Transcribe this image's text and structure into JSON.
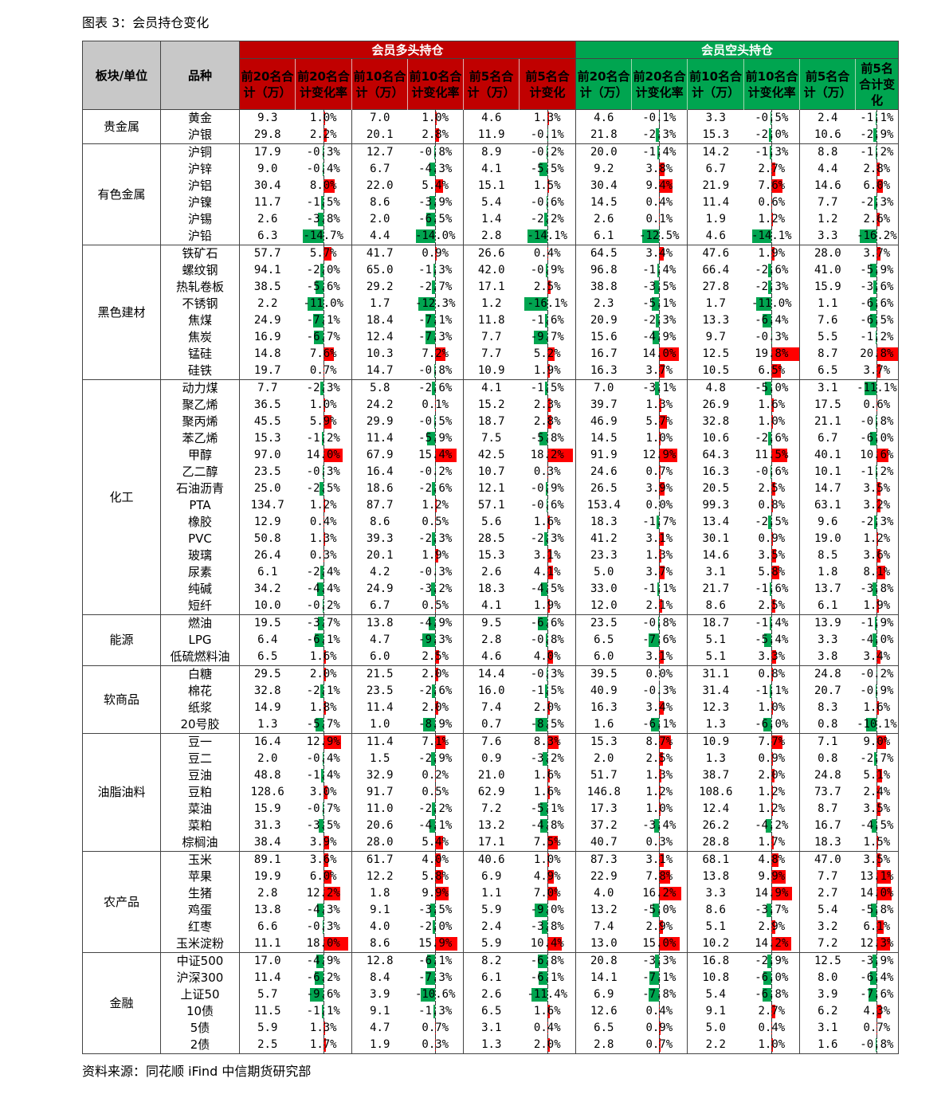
{
  "title": "图表 3：会员持仓变化",
  "source": "资料来源：同花顺 iFind 中信期货研究部",
  "colors": {
    "long": "#c00000",
    "short": "#00a550",
    "pos_bar": "#ff0000",
    "neg_bar": "#00a550"
  },
  "header": {
    "sector": "板块/单位",
    "product": "品种",
    "long_group": "会员多头持仓",
    "short_group": "会员空头持仓",
    "cols": [
      "前20名合计（万）",
      "前20名合计变化率",
      "前10名合计（万）",
      "前10名合计变化率",
      "前5名合计（万）",
      "前5名合计变化"
    ]
  },
  "bar_max_percent": 20,
  "sections": [
    {
      "name": "贵金属",
      "rows": [
        [
          "黄金",
          "9.3",
          "1.0%",
          "7.0",
          "1.0%",
          "4.6",
          "1.3%",
          "4.6",
          "-0.1%",
          "3.3",
          "-0.5%",
          "2.4",
          "-1.1%"
        ],
        [
          "沪银",
          "29.8",
          "2.2%",
          "20.1",
          "2.8%",
          "11.9",
          "-0.1%",
          "21.8",
          "-2.3%",
          "15.3",
          "-2.0%",
          "10.6",
          "-2.9%"
        ]
      ]
    },
    {
      "name": "有色金属",
      "rows": [
        [
          "沪铜",
          "17.9",
          "-0.3%",
          "12.7",
          "-0.8%",
          "8.9",
          "-0.2%",
          "20.0",
          "-1.4%",
          "14.2",
          "-1.3%",
          "8.8",
          "-1.2%"
        ],
        [
          "沪锌",
          "9.0",
          "-0.4%",
          "6.7",
          "-4.3%",
          "4.1",
          "-5.5%",
          "9.2",
          "3.8%",
          "6.7",
          "2.7%",
          "4.4",
          "2.8%"
        ],
        [
          "沪铝",
          "30.4",
          "8.0%",
          "22.0",
          "5.4%",
          "15.1",
          "1.5%",
          "30.4",
          "9.4%",
          "21.9",
          "7.6%",
          "14.6",
          "6.0%"
        ],
        [
          "沪镍",
          "11.7",
          "-1.5%",
          "8.6",
          "-3.9%",
          "5.4",
          "-0.6%",
          "14.5",
          "0.4%",
          "11.4",
          "0.6%",
          "7.7",
          "-2.3%"
        ],
        [
          "沪锡",
          "2.6",
          "-3.8%",
          "2.0",
          "-6.5%",
          "1.4",
          "-2.2%",
          "2.6",
          "0.1%",
          "1.9",
          "1.2%",
          "1.2",
          "2.6%"
        ],
        [
          "沪铅",
          "6.3",
          "-14.7%",
          "4.4",
          "-14.0%",
          "2.8",
          "-14.1%",
          "6.1",
          "-12.5%",
          "4.6",
          "-14.1%",
          "3.3",
          "-16.2%"
        ]
      ]
    },
    {
      "name": "黑色建材",
      "rows": [
        [
          "铁矿石",
          "57.7",
          "5.7%",
          "41.7",
          "0.9%",
          "26.6",
          "0.4%",
          "64.5",
          "3.4%",
          "47.6",
          "1.9%",
          "28.0",
          "3.7%"
        ],
        [
          "螺纹钢",
          "94.1",
          "-2.0%",
          "65.0",
          "-1.3%",
          "42.0",
          "-0.9%",
          "96.8",
          "-1.4%",
          "66.4",
          "-2.6%",
          "41.0",
          "-5.9%"
        ],
        [
          "热轧卷板",
          "38.5",
          "-5.6%",
          "29.2",
          "-2.7%",
          "17.1",
          "2.5%",
          "38.8",
          "-3.5%",
          "27.8",
          "-2.3%",
          "15.9",
          "-3.6%"
        ],
        [
          "不锈钢",
          "2.2",
          "-11.0%",
          "1.7",
          "-12.3%",
          "1.2",
          "-16.1%",
          "2.3",
          "-5.1%",
          "1.7",
          "-11.0%",
          "1.1",
          "-6.6%"
        ],
        [
          "焦煤",
          "24.9",
          "-7.1%",
          "18.4",
          "-7.1%",
          "11.8",
          "-1.6%",
          "20.9",
          "-2.3%",
          "13.3",
          "-6.4%",
          "7.6",
          "-6.5%"
        ],
        [
          "焦炭",
          "16.9",
          "-6.7%",
          "12.4",
          "-7.3%",
          "7.7",
          "-9.7%",
          "15.6",
          "-4.9%",
          "9.7",
          "-0.3%",
          "5.5",
          "-1.2%"
        ],
        [
          "锰硅",
          "14.8",
          "7.6%",
          "10.3",
          "7.2%",
          "7.7",
          "5.2%",
          "16.7",
          "14.0%",
          "12.5",
          "19.8%",
          "8.7",
          "20.8%"
        ],
        [
          "硅铁",
          "19.7",
          "0.7%",
          "14.7",
          "-0.8%",
          "10.9",
          "1.9%",
          "16.3",
          "3.7%",
          "10.5",
          "6.5%",
          "6.5",
          "3.7%"
        ]
      ]
    },
    {
      "name": "化工",
      "rows": [
        [
          "动力煤",
          "7.7",
          "-2.3%",
          "5.8",
          "-2.6%",
          "4.1",
          "-1.5%",
          "7.0",
          "-3.1%",
          "4.8",
          "-5.0%",
          "3.1",
          "-11.1%"
        ],
        [
          "聚乙烯",
          "36.5",
          "1.0%",
          "24.2",
          "0.1%",
          "15.2",
          "2.3%",
          "39.7",
          "1.3%",
          "26.9",
          "1.6%",
          "17.5",
          "0.6%"
        ],
        [
          "聚丙烯",
          "45.5",
          "5.9%",
          "29.9",
          "-0.5%",
          "18.7",
          "2.8%",
          "46.9",
          "5.7%",
          "32.8",
          "1.0%",
          "21.1",
          "-0.8%"
        ],
        [
          "苯乙烯",
          "15.3",
          "-1.2%",
          "11.4",
          "-5.9%",
          "7.5",
          "-5.8%",
          "14.5",
          "1.0%",
          "10.6",
          "-2.6%",
          "6.7",
          "-6.0%"
        ],
        [
          "甲醇",
          "97.0",
          "14.0%",
          "67.9",
          "15.4%",
          "42.5",
          "18.2%",
          "91.9",
          "12.9%",
          "64.3",
          "11.5%",
          "40.1",
          "10.6%"
        ],
        [
          "乙二醇",
          "23.5",
          "-0.3%",
          "16.4",
          "-0.2%",
          "10.7",
          "0.3%",
          "24.6",
          "0.7%",
          "16.3",
          "-0.6%",
          "10.1",
          "-1.2%"
        ],
        [
          "石油沥青",
          "25.0",
          "-2.5%",
          "18.6",
          "-2.6%",
          "12.1",
          "-0.9%",
          "26.5",
          "3.9%",
          "20.5",
          "2.5%",
          "14.7",
          "3.5%"
        ],
        [
          "PTA",
          "134.7",
          "1.2%",
          "87.7",
          "1.2%",
          "57.1",
          "-0.6%",
          "153.4",
          "0.0%",
          "99.3",
          "0.8%",
          "63.1",
          "3.2%"
        ],
        [
          "橡胶",
          "12.9",
          "0.4%",
          "8.6",
          "0.5%",
          "5.6",
          "1.6%",
          "18.3",
          "-1.7%",
          "13.4",
          "-2.5%",
          "9.6",
          "-2.3%"
        ],
        [
          "PVC",
          "50.8",
          "1.3%",
          "39.3",
          "-2.3%",
          "28.5",
          "-2.3%",
          "41.2",
          "3.1%",
          "30.1",
          "0.9%",
          "19.0",
          "1.2%"
        ],
        [
          "玻璃",
          "26.4",
          "0.3%",
          "20.1",
          "1.9%",
          "15.3",
          "3.1%",
          "23.3",
          "1.3%",
          "14.6",
          "3.5%",
          "8.5",
          "3.6%"
        ],
        [
          "尿素",
          "6.1",
          "-2.4%",
          "4.2",
          "-0.3%",
          "2.6",
          "4.1%",
          "5.0",
          "3.7%",
          "3.1",
          "5.8%",
          "1.8",
          "8.1%"
        ],
        [
          "纯碱",
          "34.2",
          "-4.4%",
          "24.9",
          "-3.2%",
          "18.3",
          "-4.5%",
          "33.0",
          "-1.1%",
          "21.7",
          "-1.6%",
          "13.7",
          "-3.8%"
        ],
        [
          "短纤",
          "10.0",
          "-0.2%",
          "6.7",
          "0.5%",
          "4.1",
          "1.9%",
          "12.0",
          "2.1%",
          "8.6",
          "2.5%",
          "6.1",
          "1.9%"
        ]
      ]
    },
    {
      "name": "能源",
      "rows": [
        [
          "燃油",
          "19.5",
          "-3.7%",
          "13.8",
          "-4.9%",
          "9.5",
          "-6.6%",
          "23.5",
          "-0.8%",
          "18.7",
          "-1.4%",
          "13.9",
          "-1.9%"
        ],
        [
          "LPG",
          "6.4",
          "-6.1%",
          "4.7",
          "-9.3%",
          "2.8",
          "-0.8%",
          "6.5",
          "-7.6%",
          "5.1",
          "-5.4%",
          "3.3",
          "-4.0%"
        ],
        [
          "低硫燃料油",
          "6.5",
          "1.6%",
          "6.0",
          "2.5%",
          "4.6",
          "4.0%",
          "6.0",
          "3.1%",
          "5.1",
          "3.3%",
          "3.8",
          "3.4%"
        ]
      ]
    },
    {
      "name": "软商品",
      "rows": [
        [
          "白糖",
          "29.5",
          "2.0%",
          "21.5",
          "2.0%",
          "14.4",
          "-0.3%",
          "39.5",
          "0.0%",
          "31.1",
          "0.8%",
          "24.8",
          "-0.2%"
        ],
        [
          "棉花",
          "32.8",
          "-2.1%",
          "23.5",
          "-2.6%",
          "16.0",
          "-1.5%",
          "40.9",
          "-0.3%",
          "31.4",
          "-1.1%",
          "20.7",
          "-0.9%"
        ],
        [
          "纸浆",
          "14.9",
          "1.8%",
          "11.4",
          "2.0%",
          "7.4",
          "2.0%",
          "16.3",
          "3.4%",
          "12.3",
          "1.0%",
          "8.3",
          "1.6%"
        ],
        [
          "20号胶",
          "1.3",
          "-5.7%",
          "1.0",
          "-8.9%",
          "0.7",
          "-8.5%",
          "1.6",
          "-6.1%",
          "1.3",
          "-6.0%",
          "0.8",
          "-10.1%"
        ]
      ]
    },
    {
      "name": "油脂油料",
      "rows": [
        [
          "豆一",
          "16.4",
          "12.9%",
          "11.4",
          "7.1%",
          "7.6",
          "8.3%",
          "15.3",
          "8.7%",
          "10.9",
          "7.7%",
          "7.1",
          "9.0%"
        ],
        [
          "豆二",
          "2.0",
          "-0.4%",
          "1.5",
          "-2.9%",
          "0.9",
          "-3.2%",
          "2.0",
          "2.5%",
          "1.3",
          "0.9%",
          "0.8",
          "-2.7%"
        ],
        [
          "豆油",
          "48.8",
          "-1.4%",
          "32.9",
          "0.2%",
          "21.0",
          "1.6%",
          "51.7",
          "1.3%",
          "38.7",
          "2.0%",
          "24.8",
          "5.1%"
        ],
        [
          "豆粕",
          "128.6",
          "3.0%",
          "91.7",
          "0.5%",
          "62.9",
          "1.6%",
          "146.8",
          "1.2%",
          "108.6",
          "1.2%",
          "73.7",
          "2.4%"
        ],
        [
          "菜油",
          "15.9",
          "-0.7%",
          "11.0",
          "-2.2%",
          "7.2",
          "-5.1%",
          "17.3",
          "1.0%",
          "12.4",
          "1.2%",
          "8.7",
          "3.5%"
        ],
        [
          "菜粕",
          "31.3",
          "-3.5%",
          "20.6",
          "-4.1%",
          "13.2",
          "-4.8%",
          "37.2",
          "-3.4%",
          "26.2",
          "-4.2%",
          "16.7",
          "-4.5%"
        ],
        [
          "棕榈油",
          "38.4",
          "3.9%",
          "28.0",
          "5.4%",
          "17.1",
          "7.5%",
          "40.7",
          "0.3%",
          "28.8",
          "1.7%",
          "18.3",
          "1.5%"
        ]
      ]
    },
    {
      "name": "农产品",
      "rows": [
        [
          "玉米",
          "89.1",
          "3.6%",
          "61.7",
          "4.0%",
          "40.6",
          "1.0%",
          "87.3",
          "3.1%",
          "68.1",
          "4.8%",
          "47.0",
          "3.5%"
        ],
        [
          "苹果",
          "19.9",
          "6.0%",
          "12.2",
          "5.8%",
          "6.9",
          "4.9%",
          "22.9",
          "7.8%",
          "13.8",
          "9.9%",
          "7.7",
          "13.1%"
        ],
        [
          "生猪",
          "2.8",
          "12.2%",
          "1.8",
          "9.9%",
          "1.1",
          "7.0%",
          "4.0",
          "16.2%",
          "3.3",
          "14.9%",
          "2.7",
          "14.0%"
        ],
        [
          "鸡蛋",
          "13.8",
          "-4.3%",
          "9.1",
          "-3.5%",
          "5.9",
          "-9.0%",
          "13.2",
          "-5.0%",
          "8.6",
          "-3.7%",
          "5.4",
          "-5.8%"
        ],
        [
          "红枣",
          "6.6",
          "-0.3%",
          "4.0",
          "-2.0%",
          "2.4",
          "-3.8%",
          "7.4",
          "2.9%",
          "5.1",
          "2.9%",
          "3.2",
          "6.1%"
        ],
        [
          "玉米淀粉",
          "11.1",
          "18.0%",
          "8.6",
          "15.9%",
          "5.9",
          "10.4%",
          "13.0",
          "15.0%",
          "10.2",
          "14.2%",
          "7.2",
          "12.3%"
        ]
      ]
    },
    {
      "name": "金融",
      "rows": [
        [
          "中证500",
          "17.0",
          "-4.9%",
          "12.8",
          "-6.1%",
          "8.2",
          "-6.8%",
          "20.8",
          "-3.3%",
          "16.8",
          "-2.9%",
          "12.5",
          "-3.9%"
        ],
        [
          "沪深300",
          "11.4",
          "-6.2%",
          "8.4",
          "-7.3%",
          "6.1",
          "-6.1%",
          "14.1",
          "-7.1%",
          "10.8",
          "-6.0%",
          "8.0",
          "-6.4%"
        ],
        [
          "上证50",
          "5.7",
          "-9.6%",
          "3.9",
          "-10.6%",
          "2.6",
          "-11.4%",
          "6.9",
          "-7.8%",
          "5.4",
          "-6.8%",
          "3.9",
          "-7.6%"
        ],
        [
          "10债",
          "11.5",
          "-1.1%",
          "9.1",
          "-1.3%",
          "6.5",
          "1.6%",
          "12.6",
          "0.4%",
          "9.1",
          "2.7%",
          "6.2",
          "4.3%"
        ],
        [
          "5债",
          "5.9",
          "1.3%",
          "4.7",
          "0.7%",
          "3.1",
          "0.4%",
          "6.5",
          "0.9%",
          "5.0",
          "0.4%",
          "3.1",
          "0.7%"
        ],
        [
          "2债",
          "2.5",
          "1.7%",
          "1.9",
          "0.3%",
          "1.3",
          "2.0%",
          "2.8",
          "0.7%",
          "2.2",
          "1.0%",
          "1.6",
          "-0.8%"
        ]
      ]
    }
  ]
}
